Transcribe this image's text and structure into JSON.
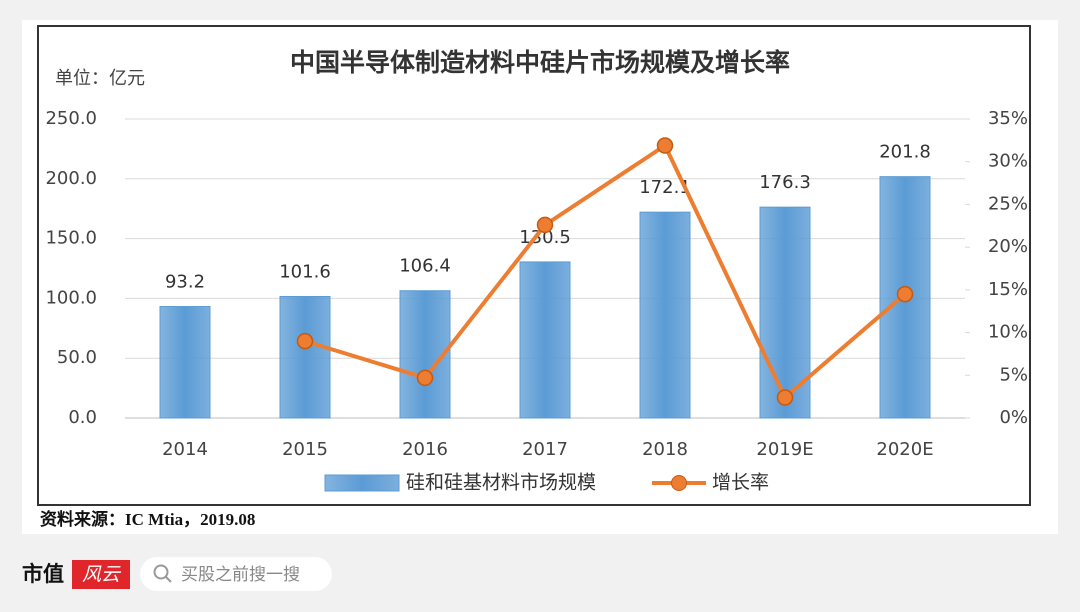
{
  "chart_data": {
    "type": "bar",
    "title": "中国半导体制造材料中硅片市场规模及增长率",
    "unit_label": "单位：亿元",
    "categories": [
      "2014",
      "2015",
      "2016",
      "2017",
      "2018",
      "2019E",
      "2020E"
    ],
    "series": [
      {
        "name": "硅和硅基材料市场规模",
        "type": "bar",
        "color": "#5b9bd5",
        "values": [
          93.2,
          101.6,
          106.4,
          130.5,
          172.1,
          176.3,
          201.8
        ]
      },
      {
        "name": "增长率",
        "type": "line",
        "axis": "y2",
        "color": "#ed7d31",
        "values": [
          null,
          9.0,
          4.7,
          22.6,
          31.9,
          2.4,
          14.5
        ]
      }
    ],
    "ylim": [
      0,
      250
    ],
    "yticks": [
      {
        "value": 0,
        "label": "0.0"
      },
      {
        "value": 50,
        "label": "50.0"
      },
      {
        "value": 100,
        "label": "100.0"
      },
      {
        "value": 150,
        "label": "150.0"
      },
      {
        "value": 200,
        "label": "200.0"
      },
      {
        "value": 250,
        "label": "250.0"
      }
    ],
    "y2lim": [
      0,
      35
    ],
    "y2ticks": [
      {
        "value": 0,
        "label": "0%"
      },
      {
        "value": 5,
        "label": "5%"
      },
      {
        "value": 10,
        "label": "10%"
      },
      {
        "value": 15,
        "label": "15%"
      },
      {
        "value": 20,
        "label": "20%"
      },
      {
        "value": 25,
        "label": "25%"
      },
      {
        "value": 30,
        "label": "30%"
      },
      {
        "value": 35,
        "label": "35%"
      }
    ],
    "grid": true,
    "legend": "bottom"
  },
  "source": "资料来源：IC Mtia，2019.08",
  "footer": {
    "brand": "市值",
    "logo": "风云",
    "search": "买股之前搜一搜"
  }
}
